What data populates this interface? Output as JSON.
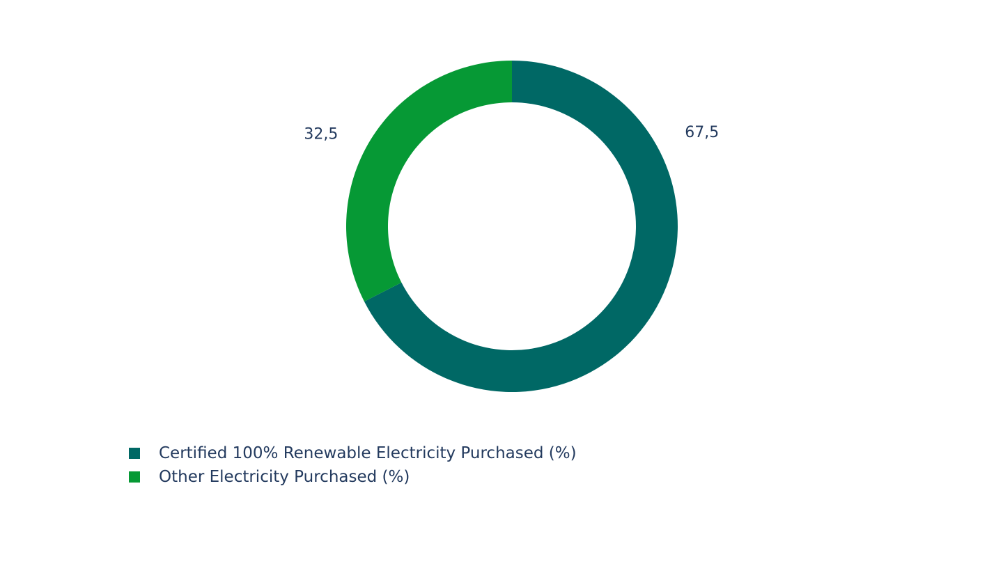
{
  "chart_data": {
    "type": "pie",
    "variant": "donut",
    "title": "",
    "slices": [
      {
        "label": "Certified 100% Renewable Electricity Purchased (%)",
        "value": 67.5,
        "display": "67,5",
        "color": "#006865"
      },
      {
        "label": "Other Electricity Purchased (%)",
        "value": 32.5,
        "display": "32,5",
        "color": "#069935"
      }
    ],
    "legend": {
      "placement": "bottom-left",
      "items": [
        {
          "label": "Certified 100% Renewable Electricity Purchased (%)",
          "color": "#006865"
        },
        {
          "label": "Other Electricity Purchased (%)",
          "color": "#069935"
        }
      ]
    },
    "text_color": "#233a5e"
  }
}
